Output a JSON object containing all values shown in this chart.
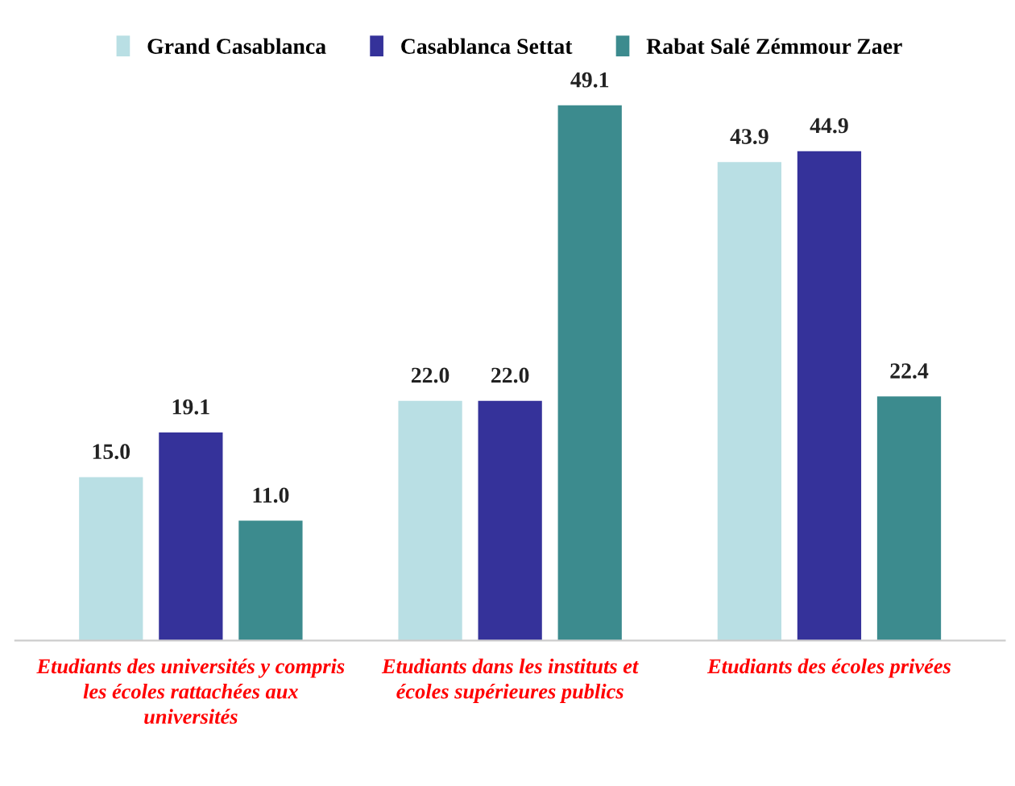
{
  "chart_data": {
    "type": "bar",
    "categories": [
      "Etudiants des universités y compris\nles écoles rattachées aux\nuniversités",
      "Etudiants dans les instituts et\nécoles supérieures publics",
      "Etudiants des écoles privées"
    ],
    "series": [
      {
        "name": "Grand Casablanca",
        "color": "#b9dfe4",
        "values": [
          15.0,
          22.0,
          43.9
        ],
        "value_labels": [
          "15.0",
          "22.0",
          "43.9"
        ]
      },
      {
        "name": "Casablanca Settat",
        "color": "#35329a",
        "values": [
          19.1,
          22.0,
          44.9
        ],
        "value_labels": [
          "19.1",
          "22.0",
          "44.9"
        ]
      },
      {
        "name": "Rabat Salé Zémmour Zaer",
        "color": "#3c8b8e",
        "values": [
          11.0,
          49.1,
          22.4
        ],
        "value_labels": [
          "11.0",
          "49.1",
          "22.4"
        ]
      }
    ],
    "tick_labels": "x",
    "legend": "top",
    "grid": false
  }
}
